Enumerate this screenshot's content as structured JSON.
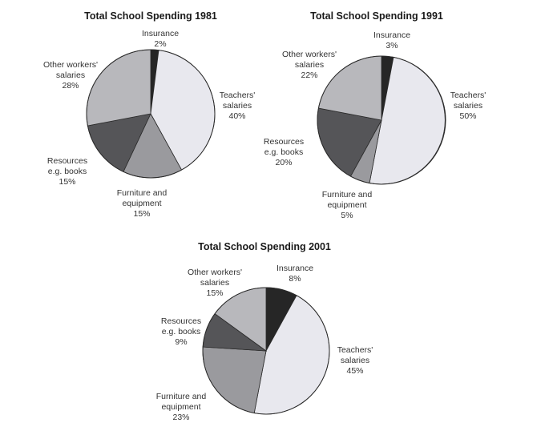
{
  "chart_data": [
    {
      "type": "pie",
      "title": "Total School Spending 1981",
      "slices": [
        {
          "name": "Insurance",
          "lines": [
            "Insurance"
          ],
          "value": 2,
          "label": "2%",
          "color": "#262626"
        },
        {
          "name": "Teachers' salaries",
          "lines": [
            "Teachers'",
            "salaries"
          ],
          "value": 40,
          "label": "40%",
          "color": "#e8e8ee"
        },
        {
          "name": "Furniture and equipment",
          "lines": [
            "Furniture and",
            "equipment"
          ],
          "value": 15,
          "label": "15%",
          "color": "#9a9a9e"
        },
        {
          "name": "Resources e.g. books",
          "lines": [
            "Resources",
            "e.g. books"
          ],
          "value": 15,
          "label": "15%",
          "color": "#555558"
        },
        {
          "name": "Other workers' salaries",
          "lines": [
            "Other workers'",
            "salaries"
          ],
          "value": 28,
          "label": "28%",
          "color": "#b8b8bc"
        }
      ]
    },
    {
      "type": "pie",
      "title": "Total School Spending 1991",
      "slices": [
        {
          "name": "Insurance",
          "lines": [
            "Insurance"
          ],
          "value": 3,
          "label": "3%",
          "color": "#262626"
        },
        {
          "name": "Teachers' salaries",
          "lines": [
            "Teachers'",
            "salaries"
          ],
          "value": 50,
          "label": "50%",
          "color": "#e8e8ee"
        },
        {
          "name": "Furniture and equipment",
          "lines": [
            "Furniture and",
            "equipment"
          ],
          "value": 5,
          "label": "5%",
          "color": "#9a9a9e"
        },
        {
          "name": "Resources e.g. books",
          "lines": [
            "Resources",
            "e.g. books"
          ],
          "value": 20,
          "label": "20%",
          "color": "#555558"
        },
        {
          "name": "Other workers' salaries",
          "lines": [
            "Other workers'",
            "salaries"
          ],
          "value": 22,
          "label": "22%",
          "color": "#b8b8bc"
        }
      ]
    },
    {
      "type": "pie",
      "title": "Total School Spending 2001",
      "slices": [
        {
          "name": "Insurance",
          "lines": [
            "Insurance"
          ],
          "value": 8,
          "label": "8%",
          "color": "#262626"
        },
        {
          "name": "Teachers' salaries",
          "lines": [
            "Teachers'",
            "salaries"
          ],
          "value": 45,
          "label": "45%",
          "color": "#e8e8ee"
        },
        {
          "name": "Furniture and equipment",
          "lines": [
            "Furniture and",
            "equipment"
          ],
          "value": 23,
          "label": "23%",
          "color": "#9a9a9e"
        },
        {
          "name": "Resources e.g. books",
          "lines": [
            "Resources",
            "e.g. books"
          ],
          "value": 9,
          "label": "9%",
          "color": "#555558"
        },
        {
          "name": "Other workers' salaries",
          "lines": [
            "Other workers'",
            "salaries"
          ],
          "value": 15,
          "label": "15%",
          "color": "#b8b8bc"
        }
      ]
    }
  ]
}
